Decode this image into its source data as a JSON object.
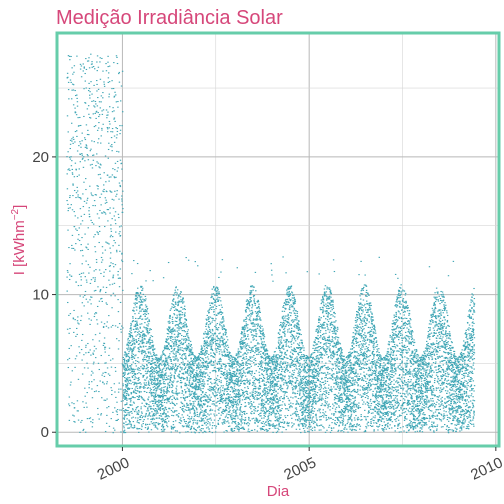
{
  "chart_data": {
    "type": "scatter",
    "title": "Medição Irradiância Solar",
    "xlabel": "Dia",
    "ylabel_main": "I  [kWhm",
    "ylabel_sup": "−2",
    "ylabel_close": "]",
    "x_axis_type": "date",
    "xlim": [
      "1998-04-01",
      "2010-02-01"
    ],
    "ylim": [
      -1,
      29
    ],
    "x_ticks": [
      "2000",
      "2005",
      "2010"
    ],
    "y_ticks": [
      0,
      10,
      20
    ],
    "grid": true,
    "legend": "none",
    "segments": [
      {
        "start": "1998-07-01",
        "end": "1999-12-31",
        "y_max": 27.5,
        "density": "sparse"
      },
      {
        "start": "2000-01-01",
        "end": "2009-05-31",
        "y_max": 10.8,
        "seasonal": true,
        "outliers_max": 12.8
      }
    ]
  },
  "colors": {
    "title": "#d6477a",
    "axis_title": "#d6477a",
    "points": "#3fa6b5",
    "panel_border": "#66cdaa",
    "grid": "#b8b8b8"
  }
}
